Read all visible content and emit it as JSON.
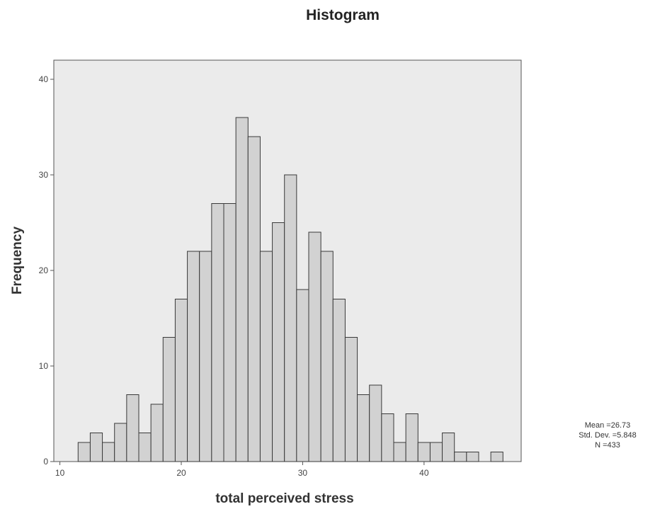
{
  "chart_data": {
    "type": "bar",
    "title": "Histogram",
    "xlabel": "total perceived stress",
    "ylabel": "Frequency",
    "xlim": [
      9.5,
      48
    ],
    "ylim": [
      0,
      42
    ],
    "x_ticks": [
      10,
      20,
      30,
      40
    ],
    "y_ticks": [
      0,
      10,
      20,
      30,
      40
    ],
    "bin_width": 1,
    "bins": [
      {
        "x": 12,
        "count": 2
      },
      {
        "x": 13,
        "count": 3
      },
      {
        "x": 14,
        "count": 2
      },
      {
        "x": 15,
        "count": 4
      },
      {
        "x": 16,
        "count": 7
      },
      {
        "x": 17,
        "count": 3
      },
      {
        "x": 18,
        "count": 6
      },
      {
        "x": 19,
        "count": 13
      },
      {
        "x": 20,
        "count": 17
      },
      {
        "x": 21,
        "count": 22
      },
      {
        "x": 22,
        "count": 22
      },
      {
        "x": 23,
        "count": 27
      },
      {
        "x": 24,
        "count": 27
      },
      {
        "x": 25,
        "count": 36
      },
      {
        "x": 26,
        "count": 34
      },
      {
        "x": 27,
        "count": 22
      },
      {
        "x": 28,
        "count": 25
      },
      {
        "x": 29,
        "count": 30
      },
      {
        "x": 30,
        "count": 18
      },
      {
        "x": 31,
        "count": 24
      },
      {
        "x": 32,
        "count": 22
      },
      {
        "x": 33,
        "count": 17
      },
      {
        "x": 34,
        "count": 13
      },
      {
        "x": 35,
        "count": 7
      },
      {
        "x": 36,
        "count": 8
      },
      {
        "x": 37,
        "count": 5
      },
      {
        "x": 38,
        "count": 2
      },
      {
        "x": 39,
        "count": 5
      },
      {
        "x": 40,
        "count": 2
      },
      {
        "x": 41,
        "count": 2
      },
      {
        "x": 42,
        "count": 3
      },
      {
        "x": 43,
        "count": 1
      },
      {
        "x": 44,
        "count": 1
      },
      {
        "x": 46,
        "count": 1
      }
    ],
    "stats": {
      "mean": "Mean =26.73",
      "std_dev": "Std. Dev. =5.848",
      "n": "N =433"
    },
    "grid": false,
    "colors": {
      "plot_background": "#ebebeb",
      "bar_fill": "#d2d2d2",
      "bar_stroke": "#3a3a3a",
      "frame": "#555555"
    }
  }
}
